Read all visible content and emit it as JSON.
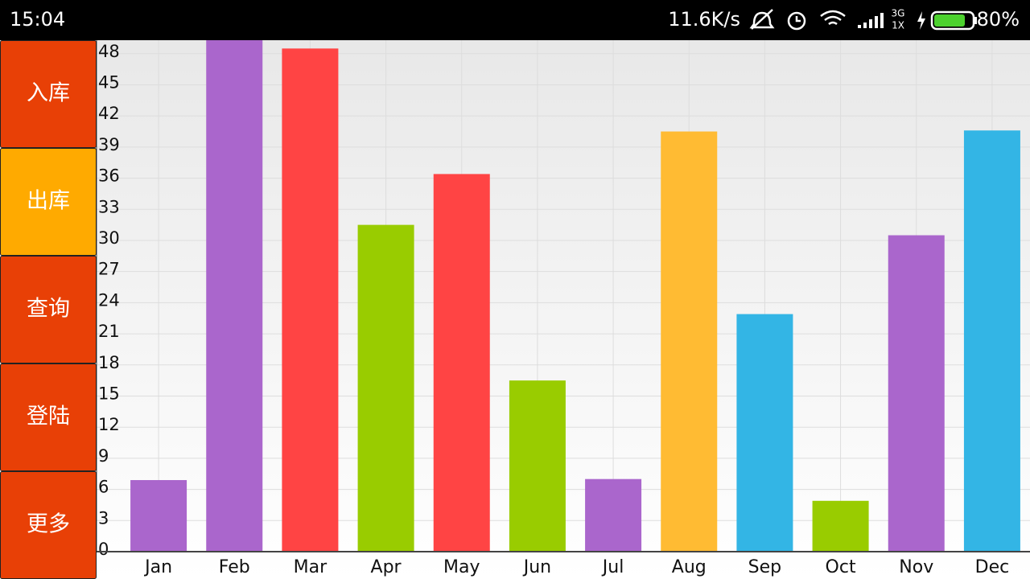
{
  "status_bar": {
    "time": "15:04",
    "speed": "11.6K/s",
    "network": "3G",
    "network_sub": "1X",
    "battery": "80%"
  },
  "side_menu": {
    "buttons": [
      "入库",
      "出库",
      "查询",
      "登陆",
      "更多"
    ]
  },
  "chart_data": {
    "type": "bar",
    "categories": [
      "Jan",
      "Feb",
      "Mar",
      "Apr",
      "May",
      "Jun",
      "Jul",
      "Aug",
      "Sep",
      "Oct",
      "Nov",
      "Dec"
    ],
    "values": [
      6.9,
      50,
      48.5,
      31.5,
      36.4,
      16.5,
      7.0,
      40.5,
      22.9,
      4.9,
      30.5,
      40.6
    ],
    "colors": [
      "#aa66cc",
      "#aa66cc",
      "#ff4444",
      "#99cc00",
      "#ff4444",
      "#99cc00",
      "#aa66cc",
      "#ffbb33",
      "#33b5e5",
      "#99cc00",
      "#aa66cc",
      "#33b5e5"
    ],
    "ylim": [
      0,
      49.3
    ],
    "yticks": [
      0,
      3,
      6,
      9,
      12,
      15,
      18,
      21,
      24,
      27,
      30,
      33,
      36,
      39,
      42,
      45,
      48
    ],
    "grid": true
  }
}
